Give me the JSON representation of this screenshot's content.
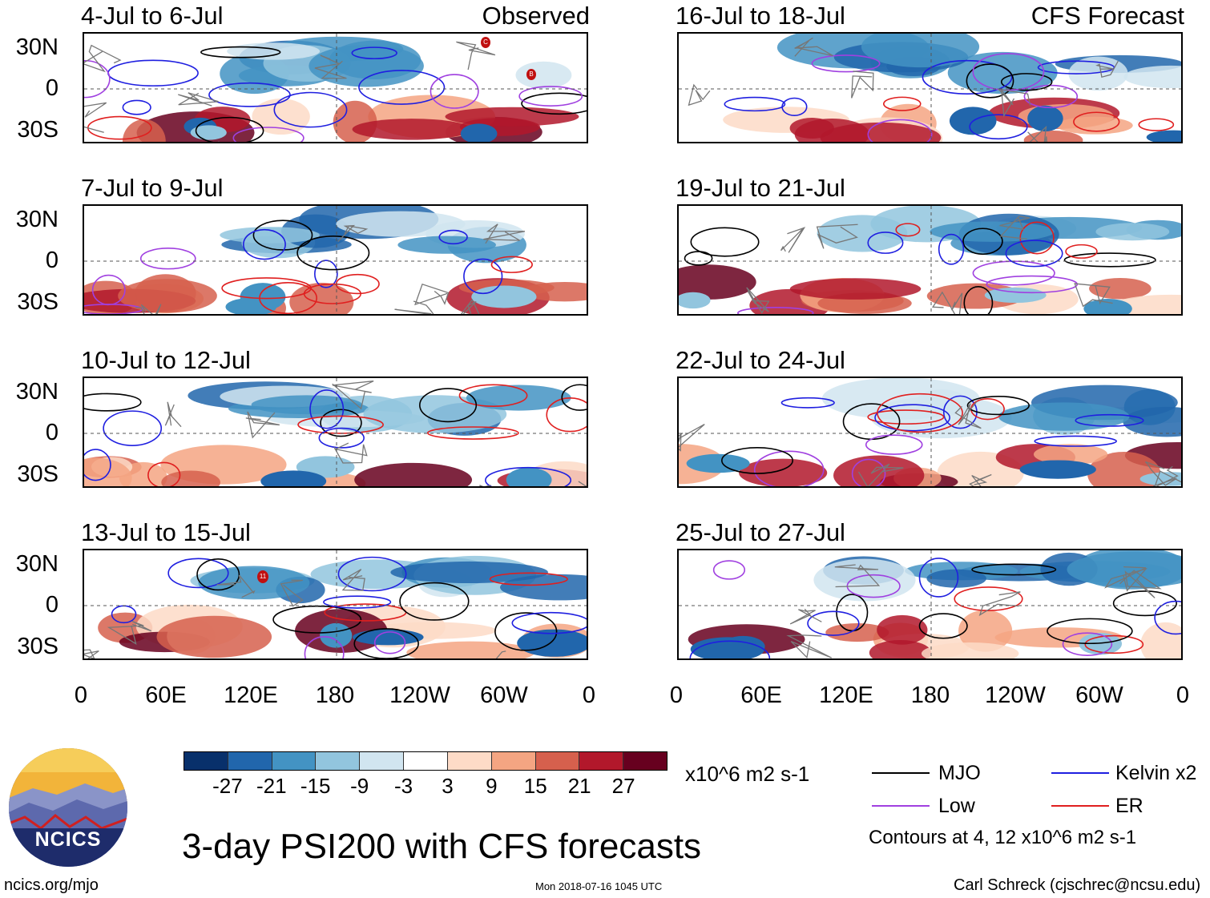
{
  "columns": {
    "left_label": "Observed",
    "right_label": "CFS Forecast"
  },
  "panels": [
    {
      "title": "4-Jul to 6-Jul",
      "column": "left",
      "row": 0
    },
    {
      "title": "7-Jul to 9-Jul",
      "column": "left",
      "row": 1
    },
    {
      "title": "10-Jul to 12-Jul",
      "column": "left",
      "row": 2
    },
    {
      "title": "13-Jul to 15-Jul",
      "column": "left",
      "row": 3
    },
    {
      "title": "16-Jul to 18-Jul",
      "column": "right",
      "row": 0
    },
    {
      "title": "19-Jul to 21-Jul",
      "column": "right",
      "row": 1
    },
    {
      "title": "22-Jul to 24-Jul",
      "column": "right",
      "row": 2
    },
    {
      "title": "25-Jul to 27-Jul",
      "column": "right",
      "row": 3
    }
  ],
  "storm_markers": {
    "panel_1": [
      "C",
      "B"
    ],
    "panel_4": [
      "11"
    ]
  },
  "y_axis_labels": [
    "30N",
    "0",
    "30S"
  ],
  "x_axis_labels": [
    "0",
    "60E",
    "120E",
    "180",
    "120W",
    "60W",
    "0"
  ],
  "colorbar": {
    "colors": [
      "#08306b",
      "#2166ac",
      "#4393c3",
      "#92c5de",
      "#d1e5f0",
      "#ffffff",
      "#fddbc7",
      "#f4a582",
      "#d6604d",
      "#b2182b",
      "#67001f"
    ],
    "tick_labels": [
      "-27",
      "-21",
      "-15",
      "-9",
      "-3",
      "3",
      "9",
      "15",
      "21",
      "27"
    ],
    "units": "x10^6 m2 s-1"
  },
  "legend": {
    "items": [
      {
        "label": "MJO",
        "color": "#000000"
      },
      {
        "label": "Kelvin x2",
        "color": "#1f1fe0"
      },
      {
        "label": "Low",
        "color": "#a040e0"
      },
      {
        "label": "ER",
        "color": "#e01f1f"
      }
    ],
    "contours_note": "Contours at 4, 12 x10^6 m2 s-1"
  },
  "title": "3-day PSI200 with CFS forecasts",
  "footer": {
    "url": "ncics.org/mjo",
    "timestamp": "Mon 2018-07-16 1045 UTC",
    "author": "Carl Schreck (cjschrec@ncsu.edu)"
  },
  "logo": {
    "text": "NCICS"
  }
}
